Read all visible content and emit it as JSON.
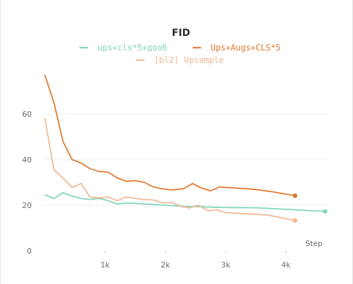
{
  "chart_data": {
    "type": "line",
    "title": "FID",
    "xlabel": "Step",
    "ylabel": "",
    "xlim": [
      0,
      4700
    ],
    "ylim": [
      0,
      80
    ],
    "x_ticks": [
      {
        "value": 1000,
        "label": "1k"
      },
      {
        "value": 2000,
        "label": "2k"
      },
      {
        "value": 3000,
        "label": "3k"
      },
      {
        "value": 4000,
        "label": "4k"
      }
    ],
    "y_ticks": [
      {
        "value": 0,
        "label": "0"
      },
      {
        "value": 20,
        "label": "20"
      },
      {
        "value": 40,
        "label": "40"
      },
      {
        "value": 60,
        "label": "60"
      }
    ],
    "grid": true,
    "legend_position": "top-center",
    "series": [
      {
        "name": "ups+cls*5+дооб",
        "color": "#7fd6bd",
        "end_marker": true,
        "points": [
          [
            0,
            24.5
          ],
          [
            150,
            23
          ],
          [
            300,
            25.5
          ],
          [
            450,
            24
          ],
          [
            600,
            23
          ],
          [
            750,
            22.5
          ],
          [
            900,
            23
          ],
          [
            1050,
            22
          ],
          [
            1200,
            20.5
          ],
          [
            1350,
            21
          ],
          [
            1500,
            20.8
          ],
          [
            1700,
            20.5
          ],
          [
            2000,
            20
          ],
          [
            2300,
            19.5
          ],
          [
            2600,
            19.3
          ],
          [
            3000,
            19
          ],
          [
            3500,
            18.9
          ],
          [
            4000,
            18.2
          ],
          [
            4400,
            17.6
          ],
          [
            4650,
            17.3
          ]
        ]
      },
      {
        "name": "Ups+Augs+CLS*5",
        "color": "#e3792e",
        "end_marker": true,
        "points": [
          [
            0,
            77
          ],
          [
            150,
            65
          ],
          [
            300,
            48
          ],
          [
            450,
            40
          ],
          [
            600,
            38.5
          ],
          [
            750,
            36
          ],
          [
            900,
            34.8
          ],
          [
            1050,
            34.5
          ],
          [
            1200,
            32
          ],
          [
            1350,
            30.5
          ],
          [
            1500,
            30.8
          ],
          [
            1650,
            30
          ],
          [
            1800,
            28
          ],
          [
            1950,
            27.2
          ],
          [
            2100,
            26.7
          ],
          [
            2300,
            27.2
          ],
          [
            2450,
            29.5
          ],
          [
            2600,
            27.5
          ],
          [
            2750,
            26.3
          ],
          [
            2900,
            28
          ],
          [
            3200,
            27.5
          ],
          [
            3500,
            26.9
          ],
          [
            3800,
            25.8
          ],
          [
            4150,
            24.2
          ]
        ]
      },
      {
        "name": "[bl2] Upsample",
        "color": "#f2b894",
        "end_marker": true,
        "points": [
          [
            0,
            58
          ],
          [
            150,
            35.5
          ],
          [
            300,
            32
          ],
          [
            450,
            27.8
          ],
          [
            600,
            29.5
          ],
          [
            750,
            23.5
          ],
          [
            900,
            23.2
          ],
          [
            1050,
            23.6
          ],
          [
            1200,
            22
          ],
          [
            1350,
            23.6
          ],
          [
            1500,
            23
          ],
          [
            1650,
            22.5
          ],
          [
            1800,
            22.3
          ],
          [
            1950,
            21
          ],
          [
            2100,
            21.2
          ],
          [
            2250,
            19.5
          ],
          [
            2400,
            18.8
          ],
          [
            2550,
            20
          ],
          [
            2700,
            17.6
          ],
          [
            2850,
            18
          ],
          [
            3000,
            16.8
          ],
          [
            3300,
            16.3
          ],
          [
            3700,
            15.7
          ],
          [
            4150,
            13.3
          ]
        ]
      }
    ]
  }
}
